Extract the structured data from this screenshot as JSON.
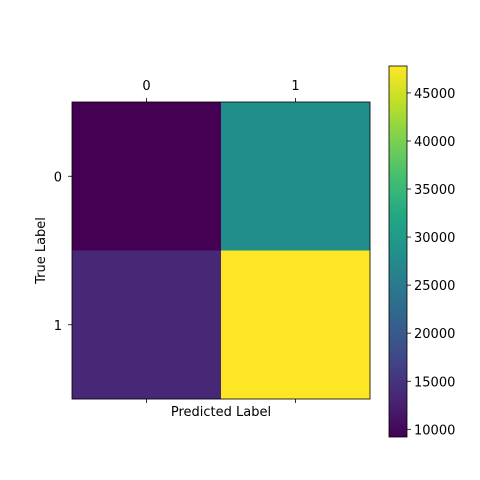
{
  "chart_data": {
    "type": "heatmap",
    "title": "",
    "xlabel": "Predicted Label",
    "ylabel": "True Label",
    "x_categories": [
      "0",
      "1"
    ],
    "y_categories": [
      "0",
      "1"
    ],
    "values": [
      [
        9200,
        28000
      ],
      [
        13500,
        47800
      ]
    ],
    "colormap": "viridis",
    "colorbar": {
      "range": [
        9200,
        47800
      ],
      "ticks": [
        10000,
        15000,
        20000,
        25000,
        30000,
        35000,
        40000,
        45000
      ],
      "tick_labels": [
        "10000",
        "15000",
        "20000",
        "25000",
        "30000",
        "35000",
        "40000",
        "45000"
      ]
    },
    "x_tick_position": "top",
    "grid": false
  }
}
